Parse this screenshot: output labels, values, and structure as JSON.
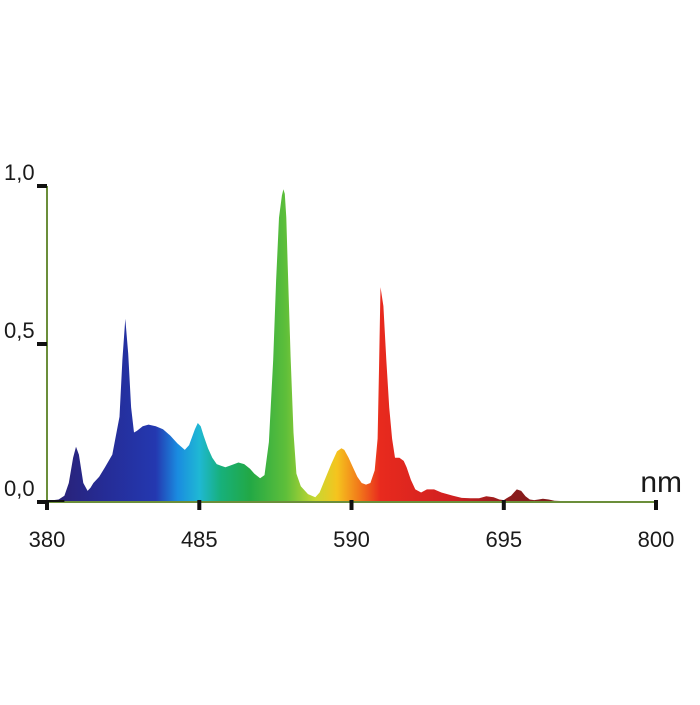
{
  "chart_data": {
    "type": "area",
    "title": "",
    "xlabel": "nm",
    "ylabel": "",
    "xlim": [
      380,
      800
    ],
    "ylim": [
      0,
      1
    ],
    "x_ticks": [
      380,
      485,
      590,
      695,
      800
    ],
    "x_tick_labels": [
      "380",
      "485",
      "590",
      "695",
      "800"
    ],
    "y_ticks": [
      0,
      0.5,
      1
    ],
    "y_tick_labels": [
      "0,0",
      "0,5",
      "1,0"
    ],
    "grid": false,
    "legend": "none",
    "axis_color": "#6b8e3a",
    "baseline_color": "#111111",
    "spectrum_stops": [
      {
        "nm": 380,
        "color": "#2a1f70"
      },
      {
        "nm": 420,
        "color": "#252c96"
      },
      {
        "nm": 455,
        "color": "#2438b0"
      },
      {
        "nm": 470,
        "color": "#1a8be0"
      },
      {
        "nm": 485,
        "color": "#1fb8d4"
      },
      {
        "nm": 500,
        "color": "#17b07a"
      },
      {
        "nm": 520,
        "color": "#22a845"
      },
      {
        "nm": 545,
        "color": "#5fbf3a"
      },
      {
        "nm": 565,
        "color": "#c8d832"
      },
      {
        "nm": 580,
        "color": "#f5c41e"
      },
      {
        "nm": 595,
        "color": "#f27a1a"
      },
      {
        "nm": 610,
        "color": "#e82a1e"
      },
      {
        "nm": 660,
        "color": "#d02020"
      },
      {
        "nm": 700,
        "color": "#8a1c1c"
      },
      {
        "nm": 800,
        "color": "#6a1515"
      }
    ],
    "series": [
      {
        "x": [
          380,
          383,
          388,
          392,
          395,
          398,
          400,
          402,
          405,
          408,
          410,
          412,
          416,
          420,
          425,
          430,
          432,
          434,
          436,
          438,
          440,
          442,
          446,
          450,
          455,
          460,
          465,
          470,
          475,
          478,
          482,
          484,
          486,
          488,
          491,
          494,
          497,
          500,
          503,
          506,
          509,
          512,
          516,
          520,
          523,
          527,
          530,
          533,
          536,
          538,
          540,
          542,
          543,
          544,
          545,
          546,
          548,
          550,
          552,
          555,
          560,
          565,
          568,
          572,
          576,
          580,
          583,
          585,
          588,
          591,
          594,
          597,
          600,
          603,
          606,
          608,
          609,
          610,
          612,
          614,
          616,
          618,
          620,
          623,
          626,
          628,
          631,
          634,
          638,
          642,
          647,
          652,
          656,
          660,
          666,
          672,
          678,
          683,
          688,
          692,
          695,
          697,
          700,
          702,
          704,
          707,
          710,
          713,
          716,
          719,
          722,
          726,
          730,
          736,
          742,
          750,
          760,
          770,
          780,
          790,
          800
        ],
        "y": [
          0.005,
          0.005,
          0.008,
          0.02,
          0.06,
          0.14,
          0.175,
          0.15,
          0.06,
          0.035,
          0.045,
          0.06,
          0.08,
          0.11,
          0.15,
          0.27,
          0.45,
          0.58,
          0.47,
          0.3,
          0.22,
          0.225,
          0.24,
          0.245,
          0.24,
          0.23,
          0.21,
          0.185,
          0.165,
          0.18,
          0.23,
          0.25,
          0.24,
          0.21,
          0.17,
          0.14,
          0.12,
          0.115,
          0.11,
          0.115,
          0.12,
          0.125,
          0.12,
          0.105,
          0.09,
          0.075,
          0.085,
          0.19,
          0.45,
          0.7,
          0.9,
          0.97,
          0.99,
          0.975,
          0.9,
          0.75,
          0.46,
          0.22,
          0.09,
          0.05,
          0.025,
          0.015,
          0.03,
          0.075,
          0.12,
          0.16,
          0.17,
          0.165,
          0.14,
          0.11,
          0.08,
          0.06,
          0.055,
          0.06,
          0.1,
          0.2,
          0.42,
          0.68,
          0.62,
          0.45,
          0.3,
          0.2,
          0.14,
          0.14,
          0.13,
          0.11,
          0.07,
          0.04,
          0.03,
          0.04,
          0.04,
          0.03,
          0.025,
          0.02,
          0.013,
          0.012,
          0.012,
          0.018,
          0.015,
          0.008,
          0.006,
          0.012,
          0.02,
          0.03,
          0.04,
          0.035,
          0.018,
          0.008,
          0.006,
          0.008,
          0.01,
          0.008,
          0.004,
          0.003,
          0.003,
          0.002,
          0.002,
          0.002,
          0.002,
          0.002,
          0.002
        ]
      }
    ]
  }
}
